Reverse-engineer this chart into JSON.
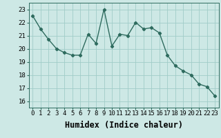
{
  "xlabel": "Humidex (Indice chaleur)",
  "x": [
    0,
    1,
    2,
    3,
    4,
    5,
    6,
    7,
    8,
    9,
    10,
    11,
    12,
    13,
    14,
    15,
    16,
    17,
    18,
    19,
    20,
    21,
    22,
    23
  ],
  "y": [
    22.5,
    21.5,
    20.7,
    20.0,
    19.7,
    19.5,
    19.5,
    21.1,
    20.4,
    23.0,
    20.2,
    21.1,
    21.0,
    22.0,
    21.5,
    21.6,
    21.2,
    19.5,
    18.7,
    18.3,
    18.0,
    17.3,
    17.1,
    16.4
  ],
  "line_color": "#2e6b5e",
  "bg_color": "#cde8e5",
  "grid_color": "#a0ccc8",
  "ylim": [
    15.5,
    23.5
  ],
  "xlim": [
    -0.5,
    23.5
  ],
  "yticks": [
    16,
    17,
    18,
    19,
    20,
    21,
    22,
    23
  ],
  "xticks": [
    0,
    1,
    2,
    3,
    4,
    5,
    6,
    7,
    8,
    9,
    10,
    11,
    12,
    13,
    14,
    15,
    16,
    17,
    18,
    19,
    20,
    21,
    22,
    23
  ],
  "tick_fontsize": 6.5,
  "xlabel_fontsize": 8.5
}
